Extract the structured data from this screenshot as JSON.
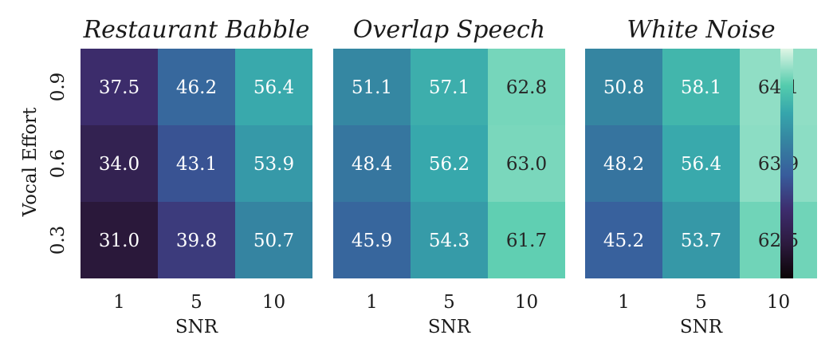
{
  "chart_data": {
    "type": "heatmap",
    "xlabel": "SNR",
    "ylabel": "Vocal Effort",
    "x_categories": [
      "1",
      "5",
      "10"
    ],
    "y_categories": [
      "0.9",
      "0.6",
      "0.3"
    ],
    "colormap": "mako",
    "colorbar": {
      "tick_labels": false
    },
    "panels": [
      {
        "title": "Restaurant Babble",
        "values": [
          [
            37.5,
            46.2,
            56.4
          ],
          [
            34.0,
            43.1,
            53.9
          ],
          [
            31.0,
            39.8,
            50.7
          ]
        ],
        "labels": [
          [
            "37.5",
            "46.2",
            "56.4"
          ],
          [
            "34.0",
            "43.1",
            "53.9"
          ],
          [
            "31.0",
            "39.8",
            "50.7"
          ]
        ]
      },
      {
        "title": "Overlap Speech",
        "values": [
          [
            51.1,
            57.1,
            62.8
          ],
          [
            48.4,
            56.2,
            63.0
          ],
          [
            45.9,
            54.3,
            61.7
          ]
        ],
        "labels": [
          [
            "51.1",
            "57.1",
            "62.8"
          ],
          [
            "48.4",
            "56.2",
            "63.0"
          ],
          [
            "45.9",
            "54.3",
            "61.7"
          ]
        ]
      },
      {
        "title": "White Noise",
        "values": [
          [
            50.8,
            58.1,
            64.1
          ],
          [
            48.2,
            56.4,
            63.9
          ],
          [
            45.2,
            53.7,
            62.5
          ]
        ],
        "labels": [
          [
            "50.8",
            "58.1",
            "64.1"
          ],
          [
            "48.2",
            "56.4",
            "63.9"
          ],
          [
            "45.2",
            "53.7",
            "62.5"
          ]
        ]
      }
    ],
    "color_scale_range": [
      25,
      68
    ]
  }
}
